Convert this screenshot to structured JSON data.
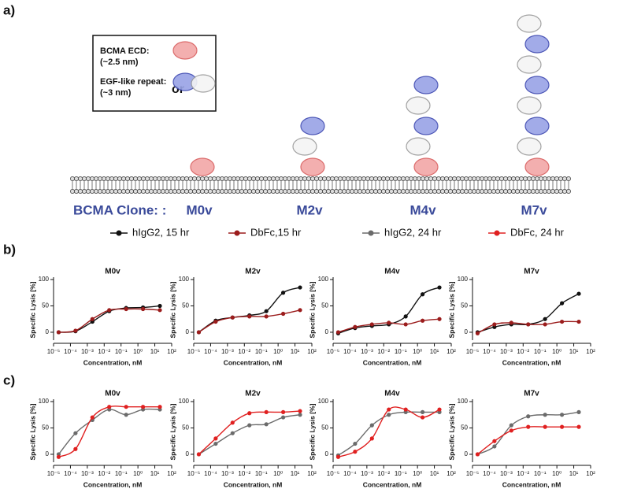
{
  "figure": {
    "panel_labels": [
      "a)",
      "b)",
      "c)"
    ],
    "diagram": {
      "box_texts": [
        "BCMA ECD:",
        "(~2.5 nm)",
        "EGF-like repeat:",
        "(~3 nm)",
        "or"
      ],
      "clone_label": "BCMA Clone: :",
      "clones": [
        "M0v",
        "M2v",
        "M4v",
        "M7v"
      ]
    }
  },
  "chart_data": [
    {
      "type": "line",
      "title": "M0v",
      "x_label": "Concentration, nM",
      "y_label": "Specific Lysis [%]",
      "xscale": "log",
      "x": [
        2e-05,
        0.0002,
        0.002,
        0.02,
        0.2,
        2,
        20
      ],
      "xlim": [
        1e-05,
        100
      ],
      "xticks": [
        {
          "value": 1e-05,
          "label": "10⁻⁵"
        },
        {
          "value": 0.0001,
          "label": "10⁻⁴"
        },
        {
          "value": 0.001,
          "label": "10⁻³"
        },
        {
          "value": 0.01,
          "label": "10⁻²"
        },
        {
          "value": 0.1,
          "label": "10⁻¹"
        },
        {
          "value": 1,
          "label": "10⁰"
        },
        {
          "value": 10,
          "label": "10¹"
        },
        {
          "value": 100,
          "label": "10²"
        }
      ],
      "ylim": [
        -15,
        100
      ],
      "yticks": [
        0,
        50,
        100
      ],
      "series": [
        {
          "name": "hIgG2, 15 hr",
          "color": "#111111",
          "values": [
            0,
            2,
            20,
            40,
            46,
            47,
            50
          ]
        },
        {
          "name": "DbFc,15 hr",
          "color": "#9b1c1c",
          "values": [
            0,
            3,
            25,
            42,
            44,
            44,
            42
          ]
        }
      ]
    },
    {
      "type": "line",
      "title": "M2v",
      "x_label": "Concentration, nM",
      "y_label": "Specific Lysis [%]",
      "xscale": "log",
      "x": [
        2e-05,
        0.0002,
        0.002,
        0.02,
        0.2,
        2,
        20
      ],
      "xlim": [
        1e-05,
        100
      ],
      "xticks": [
        {
          "value": 1e-05,
          "label": "10⁻⁵"
        },
        {
          "value": 0.0001,
          "label": "10⁻⁴"
        },
        {
          "value": 0.001,
          "label": "10⁻³"
        },
        {
          "value": 0.01,
          "label": "10⁻²"
        },
        {
          "value": 0.1,
          "label": "10⁻¹"
        },
        {
          "value": 1,
          "label": "10⁰"
        },
        {
          "value": 10,
          "label": "10¹"
        },
        {
          "value": 100,
          "label": "10²"
        }
      ],
      "ylim": [
        -15,
        100
      ],
      "yticks": [
        0,
        50,
        100
      ],
      "series": [
        {
          "name": "hIgG2, 15 hr",
          "color": "#111111",
          "values": [
            0,
            22,
            28,
            32,
            40,
            75,
            85
          ]
        },
        {
          "name": "DbFc,15 hr",
          "color": "#9b1c1c",
          "values": [
            0,
            20,
            28,
            30,
            30,
            35,
            42
          ]
        }
      ]
    },
    {
      "type": "line",
      "title": "M4v",
      "x_label": "Concentration, nM",
      "y_label": "Specific Lysis [%]",
      "xscale": "log",
      "x": [
        2e-05,
        0.0002,
        0.002,
        0.02,
        0.2,
        2,
        20
      ],
      "xlim": [
        1e-05,
        100
      ],
      "xticks": [
        {
          "value": 1e-05,
          "label": "10⁻⁵"
        },
        {
          "value": 0.0001,
          "label": "10⁻⁴"
        },
        {
          "value": 0.001,
          "label": "10⁻³"
        },
        {
          "value": 0.01,
          "label": "10⁻²"
        },
        {
          "value": 0.1,
          "label": "10⁻¹"
        },
        {
          "value": 1,
          "label": "10⁰"
        },
        {
          "value": 10,
          "label": "10¹"
        },
        {
          "value": 100,
          "label": "10²"
        }
      ],
      "ylim": [
        -15,
        100
      ],
      "yticks": [
        0,
        50,
        100
      ],
      "series": [
        {
          "name": "hIgG2, 15 hr",
          "color": "#111111",
          "values": [
            -2,
            8,
            12,
            15,
            30,
            72,
            85
          ]
        },
        {
          "name": "DbFc,15 hr",
          "color": "#9b1c1c",
          "values": [
            0,
            10,
            15,
            18,
            15,
            22,
            25
          ]
        }
      ]
    },
    {
      "type": "line",
      "title": "M7v",
      "x_label": "Concentration, nM",
      "y_label": "Specific Lysis [%]",
      "xscale": "log",
      "x": [
        2e-05,
        0.0002,
        0.002,
        0.02,
        0.2,
        2,
        20
      ],
      "xlim": [
        1e-05,
        100
      ],
      "xticks": [
        {
          "value": 1e-05,
          "label": "10⁻⁵"
        },
        {
          "value": 0.0001,
          "label": "10⁻⁴"
        },
        {
          "value": 0.001,
          "label": "10⁻³"
        },
        {
          "value": 0.01,
          "label": "10⁻²"
        },
        {
          "value": 0.1,
          "label": "10⁻¹"
        },
        {
          "value": 1,
          "label": "10⁰"
        },
        {
          "value": 10,
          "label": "10¹"
        },
        {
          "value": 100,
          "label": "10²"
        }
      ],
      "ylim": [
        -15,
        100
      ],
      "yticks": [
        0,
        50,
        100
      ],
      "series": [
        {
          "name": "hIgG2, 15 hr",
          "color": "#111111",
          "values": [
            0,
            10,
            15,
            15,
            25,
            55,
            73
          ]
        },
        {
          "name": "DbFc,15 hr",
          "color": "#9b1c1c",
          "values": [
            -2,
            15,
            18,
            15,
            15,
            20,
            20
          ]
        }
      ]
    },
    {
      "type": "line",
      "title": "M0v",
      "x_label": "Concentration, nM",
      "y_label": "Specific Lysis [%]",
      "xscale": "log",
      "x": [
        2e-05,
        0.0002,
        0.002,
        0.02,
        0.2,
        2,
        20
      ],
      "xlim": [
        1e-05,
        100
      ],
      "xticks": [
        {
          "value": 1e-05,
          "label": "10⁻⁵"
        },
        {
          "value": 0.0001,
          "label": "10⁻⁴"
        },
        {
          "value": 0.001,
          "label": "10⁻³"
        },
        {
          "value": 0.01,
          "label": "10⁻²"
        },
        {
          "value": 0.1,
          "label": "10⁻¹"
        },
        {
          "value": 1,
          "label": "10⁰"
        },
        {
          "value": 10,
          "label": "10¹"
        },
        {
          "value": 100,
          "label": "10²"
        }
      ],
      "ylim": [
        -15,
        100
      ],
      "yticks": [
        0,
        50,
        100
      ],
      "series": [
        {
          "name": "hIgG2, 24 hr",
          "color": "#6b6b6b",
          "values": [
            0,
            40,
            65,
            85,
            75,
            85,
            85
          ]
        },
        {
          "name": "DbFc, 24 hr",
          "color": "#e02020",
          "values": [
            -5,
            10,
            70,
            90,
            90,
            90,
            90
          ]
        }
      ]
    },
    {
      "type": "line",
      "title": "M2v",
      "x_label": "Concentration, nM",
      "y_label": "Specific Lysis [%]",
      "xscale": "log",
      "x": [
        2e-05,
        0.0002,
        0.002,
        0.02,
        0.2,
        2,
        20
      ],
      "xlim": [
        1e-05,
        100
      ],
      "xticks": [
        {
          "value": 1e-05,
          "label": "10⁻⁵"
        },
        {
          "value": 0.0001,
          "label": "10⁻⁴"
        },
        {
          "value": 0.001,
          "label": "10⁻³"
        },
        {
          "value": 0.01,
          "label": "10⁻²"
        },
        {
          "value": 0.1,
          "label": "10⁻¹"
        },
        {
          "value": 1,
          "label": "10⁰"
        },
        {
          "value": 10,
          "label": "10¹"
        },
        {
          "value": 100,
          "label": "10²"
        }
      ],
      "ylim": [
        -15,
        100
      ],
      "yticks": [
        0,
        50,
        100
      ],
      "series": [
        {
          "name": "hIgG2, 24 hr",
          "color": "#6b6b6b",
          "values": [
            0,
            20,
            40,
            55,
            57,
            70,
            75
          ]
        },
        {
          "name": "DbFc, 24 hr",
          "color": "#e02020",
          "values": [
            0,
            30,
            60,
            78,
            80,
            80,
            82
          ]
        }
      ]
    },
    {
      "type": "line",
      "title": "M4v",
      "x_label": "Concentration, nM",
      "y_label": "Specific Lysis [%]",
      "xscale": "log",
      "x": [
        2e-05,
        0.0002,
        0.002,
        0.02,
        0.2,
        2,
        20
      ],
      "xlim": [
        1e-05,
        100
      ],
      "xticks": [
        {
          "value": 1e-05,
          "label": "10⁻⁵"
        },
        {
          "value": 0.0001,
          "label": "10⁻⁴"
        },
        {
          "value": 0.001,
          "label": "10⁻³"
        },
        {
          "value": 0.01,
          "label": "10⁻²"
        },
        {
          "value": 0.1,
          "label": "10⁻¹"
        },
        {
          "value": 1,
          "label": "10⁰"
        },
        {
          "value": 10,
          "label": "10¹"
        },
        {
          "value": 100,
          "label": "10²"
        }
      ],
      "ylim": [
        -15,
        100
      ],
      "yticks": [
        0,
        50,
        100
      ],
      "series": [
        {
          "name": "hIgG2, 24 hr",
          "color": "#6b6b6b",
          "values": [
            -2,
            20,
            55,
            75,
            80,
            80,
            80
          ]
        },
        {
          "name": "DbFc, 24 hr",
          "color": "#e02020",
          "values": [
            -5,
            5,
            30,
            85,
            85,
            70,
            85
          ]
        }
      ]
    },
    {
      "type": "line",
      "title": "M7v",
      "x_label": "Concentration, nM",
      "y_label": "Specific Lysis [%]",
      "xscale": "log",
      "x": [
        2e-05,
        0.0002,
        0.002,
        0.02,
        0.2,
        2,
        20
      ],
      "xlim": [
        1e-05,
        100
      ],
      "xticks": [
        {
          "value": 1e-05,
          "label": "10⁻⁵"
        },
        {
          "value": 0.0001,
          "label": "10⁻⁴"
        },
        {
          "value": 0.001,
          "label": "10⁻³"
        },
        {
          "value": 0.01,
          "label": "10⁻²"
        },
        {
          "value": 0.1,
          "label": "10⁻¹"
        },
        {
          "value": 1,
          "label": "10⁰"
        },
        {
          "value": 10,
          "label": "10¹"
        },
        {
          "value": 100,
          "label": "10²"
        }
      ],
      "ylim": [
        -15,
        100
      ],
      "yticks": [
        0,
        50,
        100
      ],
      "series": [
        {
          "name": "hIgG2, 24 hr",
          "color": "#6b6b6b",
          "values": [
            0,
            15,
            55,
            72,
            75,
            75,
            80
          ]
        },
        {
          "name": "DbFc, 24 hr",
          "color": "#e02020",
          "values": [
            0,
            25,
            45,
            52,
            52,
            52,
            52
          ]
        }
      ]
    }
  ]
}
